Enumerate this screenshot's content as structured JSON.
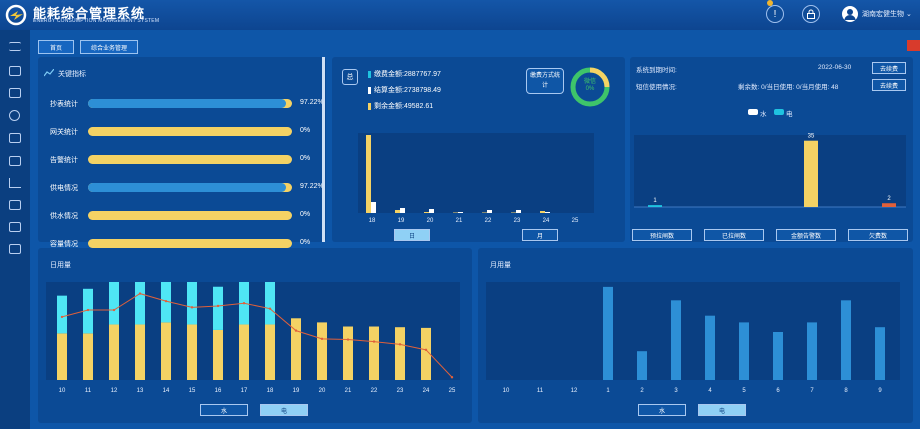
{
  "app": {
    "title": "能耗综合管理系统",
    "subtitle": "ENERGY CONSUMPTION MANAGEMENT SYSTEM",
    "user": "湖南宏健生物"
  },
  "breadcrumb": {
    "home": "首页",
    "current": "综合业务管理"
  },
  "sidebar": {
    "icons": [
      "list-icon",
      "image-icon",
      "folder-icon",
      "currency-icon",
      "chat-icon",
      "download-icon",
      "trend-icon",
      "document-search-icon",
      "grid-icon",
      "gallery-icon"
    ]
  },
  "kpi": {
    "title": "关键指标",
    "items": [
      {
        "label": "抄表统计",
        "value": "97.22%",
        "fill": 0.9722
      },
      {
        "label": "网关统计",
        "value": "0%",
        "fill": 0
      },
      {
        "label": "告警统计",
        "value": "0%",
        "fill": 0
      },
      {
        "label": "供电情况",
        "value": "97.22%",
        "fill": 0.9722
      },
      {
        "label": "供水情况",
        "value": "0%",
        "fill": 0
      },
      {
        "label": "容量情况",
        "value": "0%",
        "fill": 0
      }
    ]
  },
  "fees": {
    "total_tag": "总",
    "lines": [
      "缴费金额:2887767.97",
      "结算金额:2738798.49",
      "剩余金额:49582.61"
    ],
    "stat_button": "缴费方式统计",
    "donut_label": "微信",
    "donut_value": "0%",
    "tabs": [
      "日",
      "月"
    ]
  },
  "fee_chart": {
    "categories": [
      "18",
      "19",
      "20",
      "21",
      "22",
      "23",
      "24",
      "25"
    ],
    "series": [
      {
        "color": "#f4d264",
        "values": [
          78,
          3,
          1,
          0.5,
          0.5,
          0.5,
          2,
          0
        ]
      },
      {
        "color": "#ffffff",
        "values": [
          11,
          5,
          4,
          1,
          3,
          3,
          1,
          0
        ]
      }
    ]
  },
  "status": {
    "expiry_label": "系统到期时间:",
    "expiry_date": "2022-06-30",
    "renew1": "去续费",
    "sms_label": "短信使用情况:",
    "sms_value": "剩余数: 0/当日使用: 0/当月使用: 48",
    "renew2": "去续费",
    "legend": [
      "水",
      "电"
    ],
    "categories": [
      "预拉闸数",
      "已拉闸数",
      "金额告警数",
      "欠费数"
    ],
    "bars": [
      {
        "color": "#1fc3e0",
        "value": 1,
        "label": "1"
      },
      {
        "color": "#1fc3e0",
        "value": 0,
        "label": ""
      },
      {
        "color": "#f4d264",
        "value": 35,
        "label": "35"
      },
      {
        "color": "#e0603a",
        "value": 2,
        "label": "2"
      }
    ]
  },
  "daily": {
    "title": "日用量",
    "tabs": [
      "水",
      "电"
    ],
    "categories": [
      "10",
      "11",
      "12",
      "13",
      "14",
      "15",
      "16",
      "17",
      "18",
      "19",
      "20",
      "21",
      "22",
      "23",
      "24",
      "25"
    ],
    "series_water": [
      5.5,
      6.5,
      6.3,
      7.0,
      7.6,
      6.2,
      6.3,
      6.9,
      6.8,
      0,
      0,
      0,
      0,
      0,
      0,
      0
    ],
    "series_power": [
      6.8,
      6.8,
      8.1,
      8.1,
      8.4,
      8.1,
      7.3,
      8.1,
      8.1,
      9.0,
      8.4,
      7.8,
      7.8,
      7.7,
      7.6,
      0
    ],
    "trend": [
      9.2,
      10.2,
      10.2,
      12.6,
      11.5,
      10.6,
      10.8,
      11.2,
      10.4,
      7.2,
      6.0,
      5.9,
      5.6,
      5.2,
      4.4,
      0.4
    ]
  },
  "monthly": {
    "title": "月用量",
    "tabs": [
      "水",
      "电"
    ],
    "categories": [
      "10",
      "11",
      "12",
      "1",
      "2",
      "3",
      "4",
      "5",
      "6",
      "7",
      "8",
      "9"
    ],
    "values": [
      0,
      0,
      0,
      97,
      30,
      83,
      67,
      60,
      50,
      60,
      83,
      55
    ]
  }
}
